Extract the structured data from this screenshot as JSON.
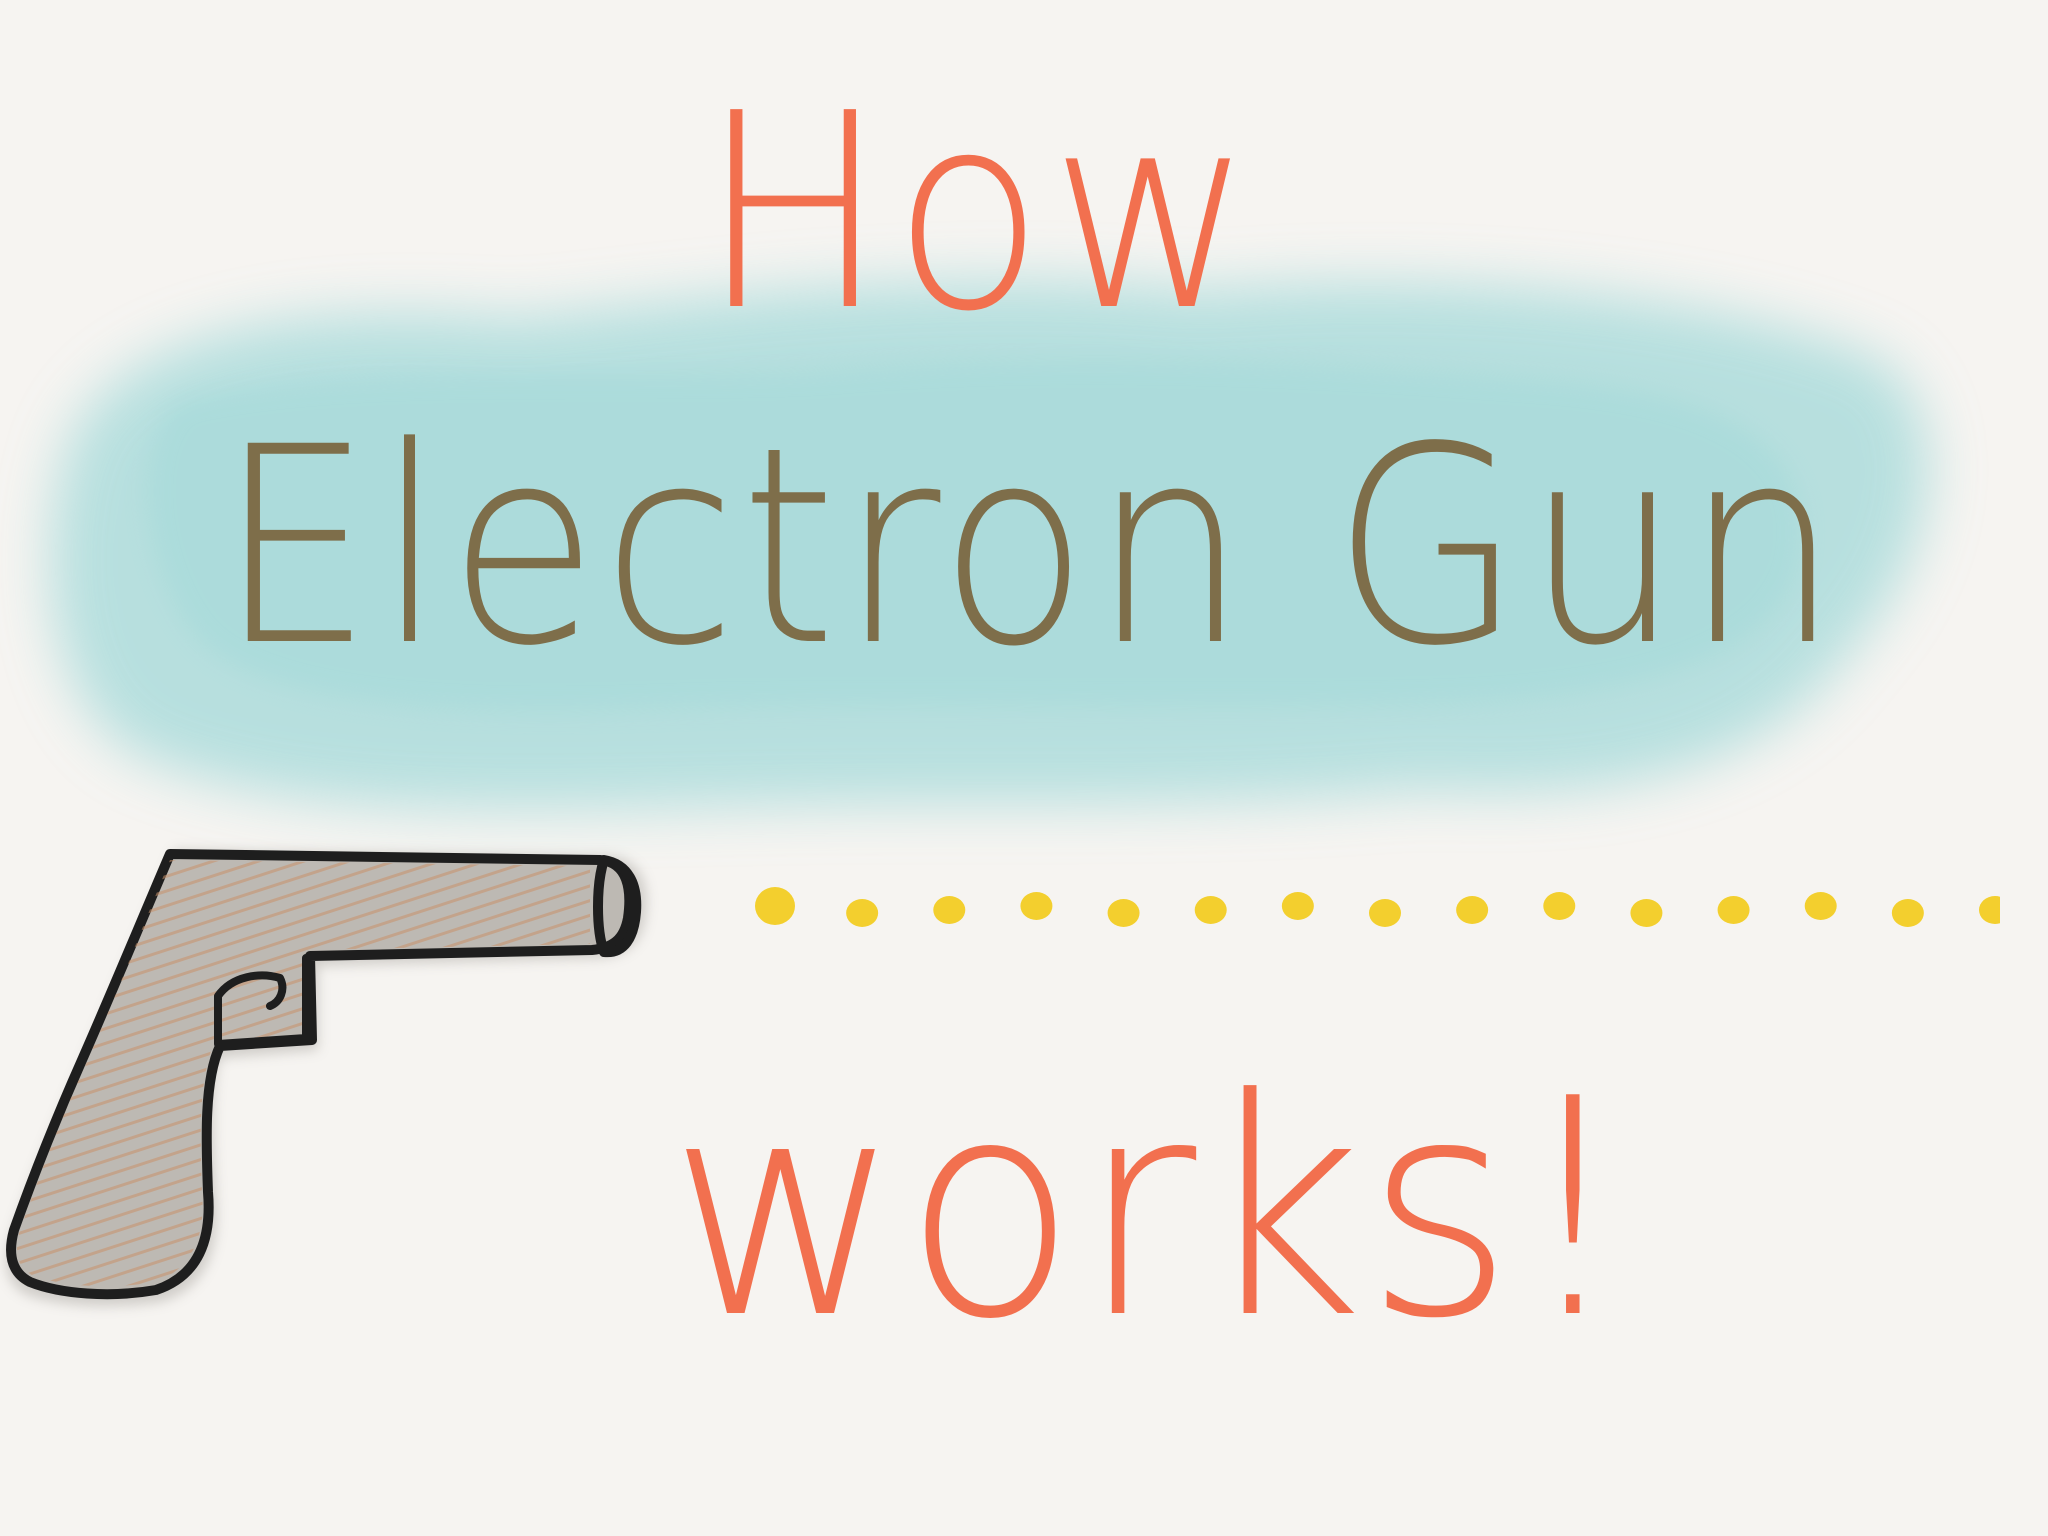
{
  "illustration": {
    "line1": "How",
    "line2": "Electron Gun",
    "line3": "works!",
    "colors": {
      "accent_orange": "#f2704f",
      "brown_text": "#7e6e4a",
      "watercolor_cyan": "#9fd8d8",
      "gun_fill": "#bdb9b3",
      "gun_outline": "#1e1e1e",
      "gun_hatch": "#c9926a",
      "beam_dot": "#f3cf2e",
      "paper": "#f6f4f1"
    },
    "icons": {
      "gun": "pistol-icon",
      "beam": "dotted-beam"
    },
    "beam_dot_count": 15
  }
}
